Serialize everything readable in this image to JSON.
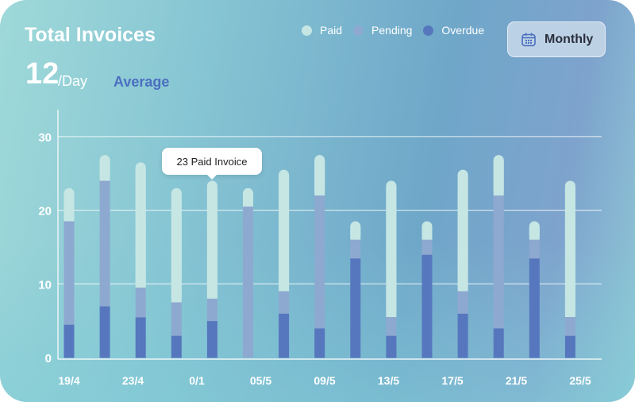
{
  "header": {
    "title": "Total Invoices",
    "average_value": "12",
    "average_unit": "/Day",
    "average_label": "Average",
    "period_button": "Monthly"
  },
  "tooltip": "23 Paid Invoice",
  "colors": {
    "paid": "#c6e6e4",
    "pending": "#8ea9d0",
    "overdue": "#5677bd"
  },
  "chart_data": {
    "type": "bar",
    "stacked": true,
    "title": "Total Invoices",
    "legend": [
      "Paid",
      "Pending",
      "Overdue"
    ],
    "legend_placement": "top-right",
    "ylim": [
      0,
      33
    ],
    "yticks": [
      0,
      10,
      20,
      30
    ],
    "grid": true,
    "x_tick_labels": [
      "19/4",
      "23/4",
      "0/1",
      "05/5",
      "09/5",
      "13/5",
      "17/5",
      "21/5",
      "25/5"
    ],
    "series": [
      {
        "name": "Overdue",
        "values": [
          4.5,
          7,
          5.5,
          3,
          5,
          0,
          6,
          4,
          13.5,
          3,
          14,
          6,
          4,
          13.5,
          3
        ]
      },
      {
        "name": "Pending",
        "values": [
          14,
          17,
          4,
          4.5,
          3,
          20.5,
          3,
          18,
          2.5,
          2.5,
          2,
          3,
          18,
          2.5,
          2.5
        ]
      },
      {
        "name": "Paid",
        "values": [
          4.5,
          3.5,
          17,
          15.5,
          16,
          2.5,
          16.5,
          5.5,
          2.5,
          18.5,
          2.5,
          16.5,
          5.5,
          2.5,
          18.5
        ]
      }
    ]
  }
}
